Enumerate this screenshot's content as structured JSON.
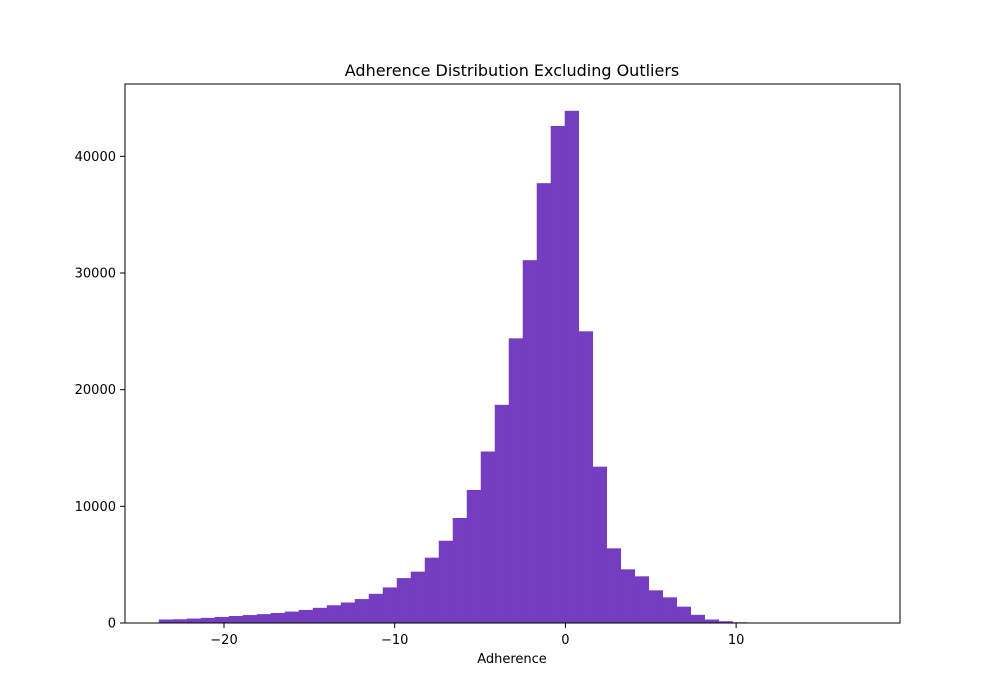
{
  "chart_data": {
    "type": "bar",
    "title": "Adherence Distribution Excluding Outliers",
    "xlabel": "Adherence",
    "ylabel": "",
    "bar_color": "#753dbf",
    "xlim": [
      -25.8,
      19.6
    ],
    "ylim": [
      0,
      46200
    ],
    "bin_start": -23.82,
    "bin_width": 0.82,
    "values": [
      300,
      320,
      380,
      440,
      520,
      600,
      680,
      760,
      860,
      980,
      1120,
      1300,
      1520,
      1760,
      2050,
      2500,
      3050,
      3850,
      4400,
      5600,
      7050,
      9000,
      11400,
      14700,
      18700,
      24400,
      31100,
      37700,
      42600,
      43900,
      25000,
      13400,
      6400,
      4600,
      4000,
      2800,
      2200,
      1400,
      700,
      300,
      150,
      60,
      30,
      15,
      10,
      5,
      4,
      3,
      2,
      1
    ],
    "xticks": [
      -20,
      -10,
      0,
      10
    ],
    "xtick_labels": [
      "−20",
      "−10",
      "0",
      "10"
    ],
    "yticks": [
      0,
      10000,
      20000,
      30000,
      40000
    ],
    "ytick_labels": [
      "0",
      "10000",
      "20000",
      "30000",
      "40000"
    ],
    "grid": false
  }
}
